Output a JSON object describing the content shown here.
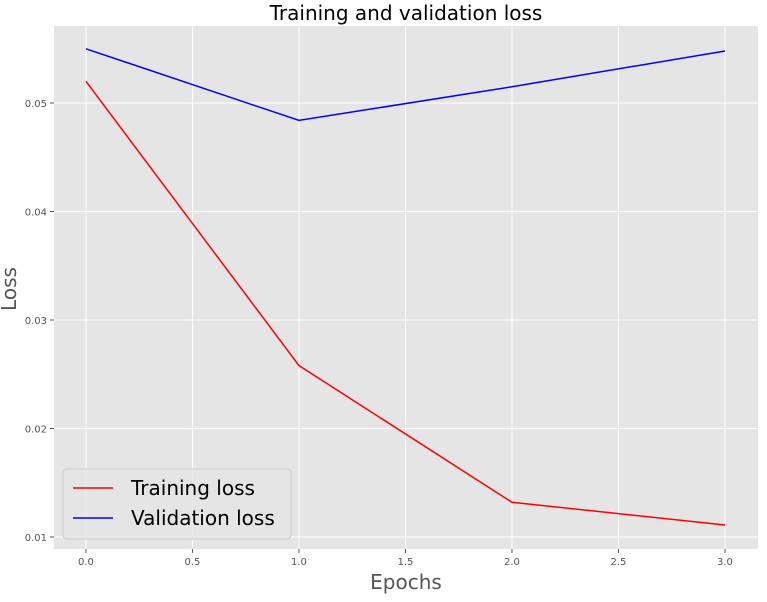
{
  "chart_data": {
    "type": "line",
    "title": "Training and validation loss",
    "xlabel": "Epochs",
    "ylabel": "Loss",
    "x": [
      0,
      1,
      2,
      3
    ],
    "series": [
      {
        "name": "Training loss",
        "color": "#ff0000",
        "values": [
          0.052,
          0.0258,
          0.0132,
          0.0111
        ]
      },
      {
        "name": "Validation loss",
        "color": "#0000ff",
        "values": [
          0.055,
          0.0484,
          0.0515,
          0.0548
        ]
      }
    ],
    "xlim": [
      -0.15,
      3.155
    ],
    "ylim": [
      0.00889,
      0.0571
    ],
    "xticks": [
      0.0,
      0.5,
      1.0,
      1.5,
      2.0,
      2.5,
      3.0
    ],
    "xtick_labels": [
      "0.0",
      "0.5",
      "1.0",
      "1.5",
      "2.0",
      "2.5",
      "3.0"
    ],
    "yticks": [
      0.01,
      0.02,
      0.03,
      0.04,
      0.05
    ],
    "ytick_labels": [
      "0.01",
      "0.02",
      "0.03",
      "0.04",
      "0.05"
    ],
    "grid": true,
    "legend": "bottom-left",
    "background": "#e5e5e5"
  }
}
